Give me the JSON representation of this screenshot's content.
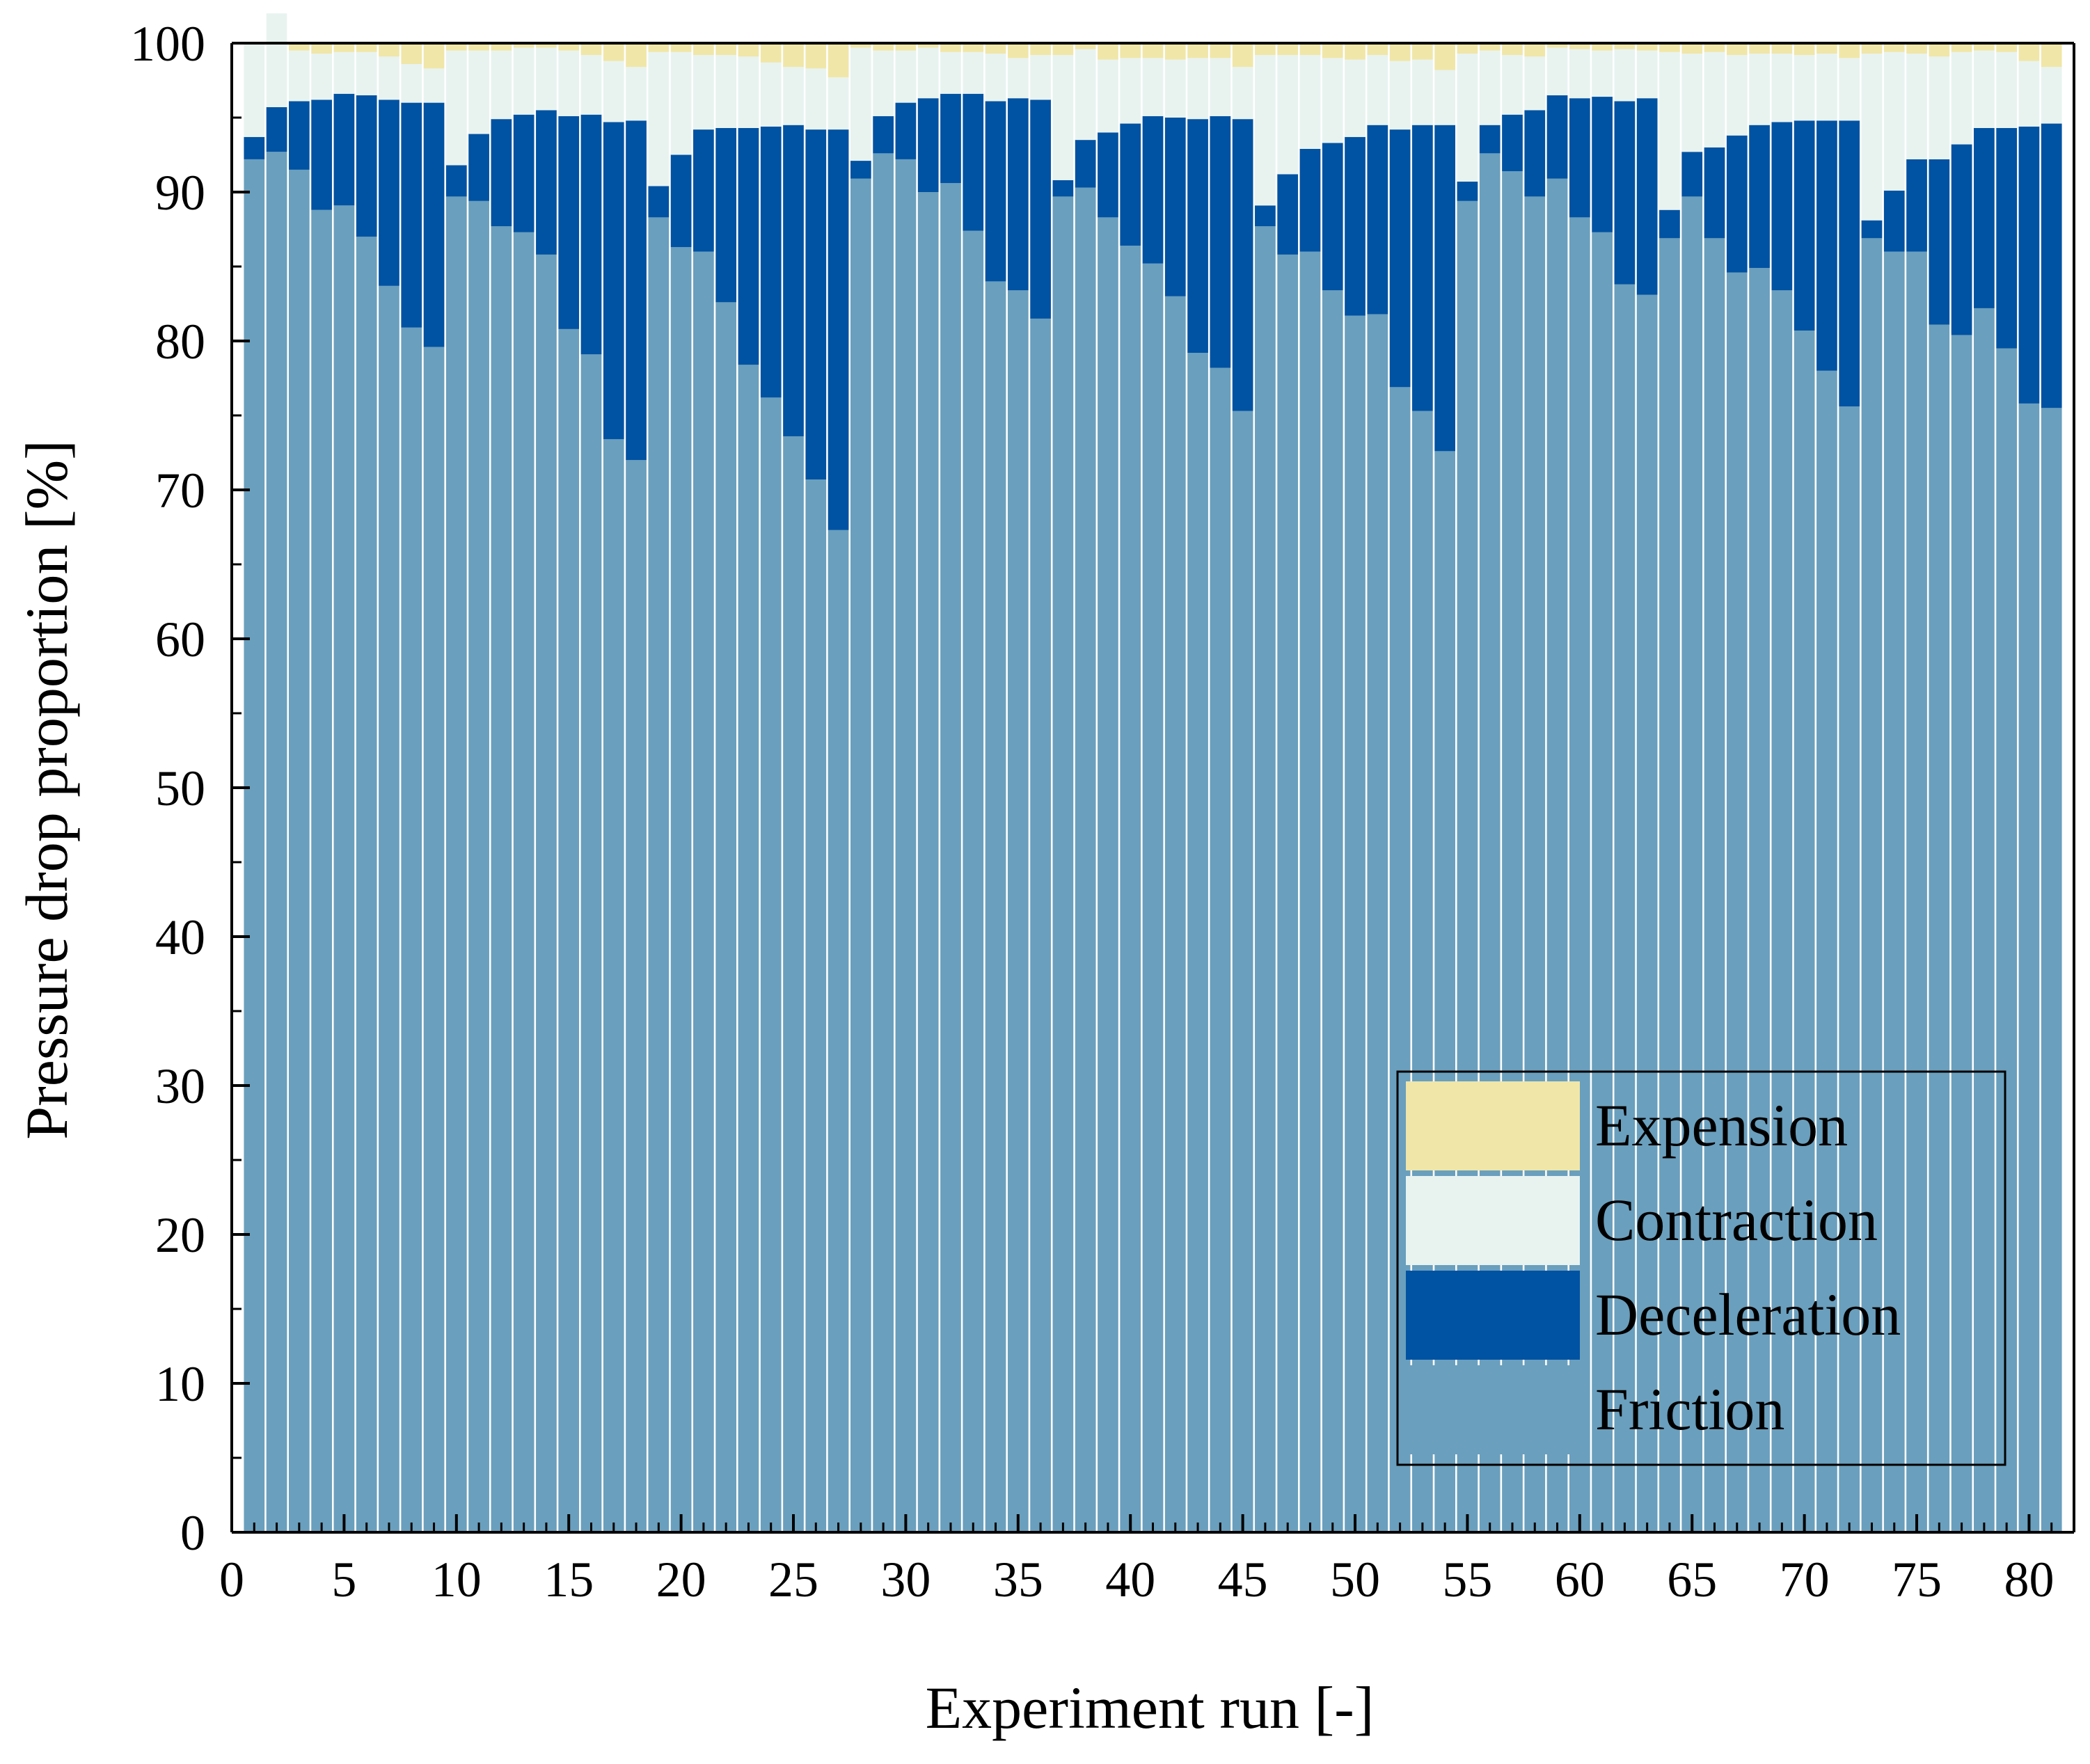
{
  "chart_data": {
    "type": "bar",
    "stacked": true,
    "xlabel": "Experiment run [-]",
    "ylabel": "Pressure drop proportion [%]",
    "ylim": [
      0,
      100
    ],
    "xlim": [
      0,
      82
    ],
    "y_ticks": [
      0,
      10,
      20,
      30,
      40,
      50,
      60,
      70,
      80,
      90,
      100
    ],
    "x_ticks": [
      0,
      5,
      10,
      15,
      20,
      25,
      30,
      35,
      40,
      45,
      50,
      55,
      60,
      65,
      70,
      75,
      80
    ],
    "legend_position": "bottom-right",
    "categories": [
      1,
      2,
      3,
      4,
      5,
      6,
      7,
      8,
      9,
      10,
      11,
      12,
      13,
      14,
      15,
      16,
      17,
      18,
      19,
      20,
      21,
      22,
      23,
      24,
      25,
      26,
      27,
      28,
      29,
      30,
      31,
      32,
      33,
      34,
      35,
      36,
      37,
      38,
      39,
      40,
      41,
      42,
      43,
      44,
      45,
      46,
      47,
      48,
      49,
      50,
      51,
      52,
      53,
      54,
      55,
      56,
      57,
      58,
      59,
      60,
      61,
      62,
      63,
      64,
      65,
      66,
      67,
      68,
      69,
      70,
      71,
      72,
      73,
      74,
      75,
      76,
      77,
      78,
      79,
      80,
      81
    ],
    "series": [
      {
        "name": "Friction",
        "color": "#6a9fbd",
        "values": [
          92.2,
          92.7,
          91.5,
          88.8,
          89.1,
          87.0,
          83.7,
          80.9,
          79.6,
          89.7,
          89.4,
          87.7,
          87.3,
          85.8,
          80.8,
          79.1,
          73.4,
          72.0,
          88.3,
          86.3,
          86.0,
          82.6,
          78.4,
          76.2,
          73.6,
          70.7,
          67.3,
          90.9,
          92.6,
          92.2,
          90.0,
          90.6,
          87.4,
          84.0,
          83.4,
          81.5,
          89.7,
          90.3,
          88.3,
          86.4,
          85.2,
          83.0,
          79.2,
          78.2,
          75.3,
          87.7,
          85.8,
          86.0,
          83.4,
          81.7,
          81.8,
          76.9,
          75.3,
          72.6,
          89.4,
          92.6,
          91.4,
          89.7,
          90.9,
          88.3,
          87.3,
          83.8,
          83.1,
          86.9,
          89.7,
          86.9,
          84.6,
          84.9,
          83.4,
          80.7,
          78.0,
          75.6,
          86.9,
          86.0,
          86.0,
          81.1,
          80.4,
          82.2,
          79.5,
          75.8,
          75.5
        ]
      },
      {
        "name": "Deceleration",
        "color": "#0052a2",
        "values": [
          1.5,
          3.0,
          4.6,
          7.4,
          7.5,
          9.5,
          12.5,
          15.1,
          16.4,
          2.1,
          4.5,
          7.2,
          7.9,
          9.7,
          14.3,
          16.1,
          21.3,
          22.8,
          2.1,
          6.2,
          8.2,
          11.7,
          15.9,
          18.2,
          20.9,
          23.5,
          26.9,
          1.2,
          2.5,
          3.8,
          6.3,
          6.0,
          9.2,
          12.1,
          12.9,
          14.7,
          1.1,
          3.2,
          5.7,
          8.2,
          9.9,
          12.0,
          15.7,
          16.9,
          19.6,
          1.4,
          5.4,
          6.9,
          9.9,
          12.0,
          12.7,
          17.3,
          19.2,
          21.9,
          1.3,
          1.9,
          3.8,
          5.8,
          5.6,
          8.0,
          9.1,
          12.3,
          13.2,
          1.9,
          3.0,
          6.1,
          9.2,
          9.6,
          11.3,
          14.1,
          16.8,
          19.2,
          1.2,
          4.1,
          6.2,
          11.1,
          12.8,
          12.1,
          14.8,
          18.6,
          19.1
        ]
      },
      {
        "name": "Contraction",
        "color": "#e8f3f0",
        "values": [
          6.3,
          6.3,
          3.4,
          3.1,
          2.8,
          2.9,
          2.9,
          2.6,
          2.3,
          7.7,
          5.6,
          4.6,
          4.5,
          4.2,
          4.4,
          4.0,
          4.1,
          3.6,
          9.0,
          6.9,
          5.0,
          4.9,
          4.8,
          4.3,
          3.9,
          4.1,
          3.5,
          7.6,
          4.4,
          3.5,
          3.4,
          2.8,
          2.8,
          3.2,
          2.7,
          3.0,
          8.4,
          6.1,
          4.9,
          4.4,
          3.9,
          3.9,
          4.1,
          3.9,
          3.5,
          10.1,
          8.0,
          6.3,
          5.7,
          5.2,
          4.7,
          4.6,
          4.4,
          3.7,
          8.6,
          5.0,
          4.0,
          3.6,
          3.2,
          3.3,
          3.1,
          3.5,
          3.2,
          10.6,
          6.6,
          6.4,
          5.4,
          4.8,
          4.6,
          4.4,
          4.5,
          4.2,
          11.2,
          9.3,
          7.1,
          6.9,
          6.2,
          5.2,
          5.1,
          4.4,
          3.8
        ]
      },
      {
        "name": "Expension",
        "color": "#f0e6a8",
        "values": [
          0.0,
          0.0,
          0.5,
          0.7,
          0.6,
          0.6,
          0.9,
          1.4,
          1.7,
          0.5,
          0.5,
          0.5,
          0.3,
          0.3,
          0.5,
          0.8,
          1.2,
          1.6,
          0.6,
          0.6,
          0.8,
          0.8,
          0.9,
          1.3,
          1.6,
          1.7,
          2.3,
          0.3,
          0.5,
          0.5,
          0.3,
          0.6,
          0.6,
          0.7,
          1.0,
          0.8,
          0.8,
          0.4,
          1.1,
          1.0,
          1.0,
          1.1,
          1.0,
          1.0,
          1.6,
          0.8,
          0.8,
          0.8,
          1.0,
          1.1,
          0.8,
          1.2,
          1.1,
          1.8,
          0.7,
          0.5,
          0.8,
          0.9,
          0.3,
          0.4,
          0.5,
          0.4,
          0.5,
          0.6,
          0.7,
          0.6,
          0.8,
          0.7,
          0.7,
          0.8,
          0.7,
          1.0,
          0.7,
          0.6,
          0.7,
          0.9,
          0.6,
          0.5,
          0.6,
          1.2,
          1.6
        ]
      }
    ],
    "legend_order": [
      "Expension",
      "Contraction",
      "Deceleration",
      "Friction"
    ]
  }
}
